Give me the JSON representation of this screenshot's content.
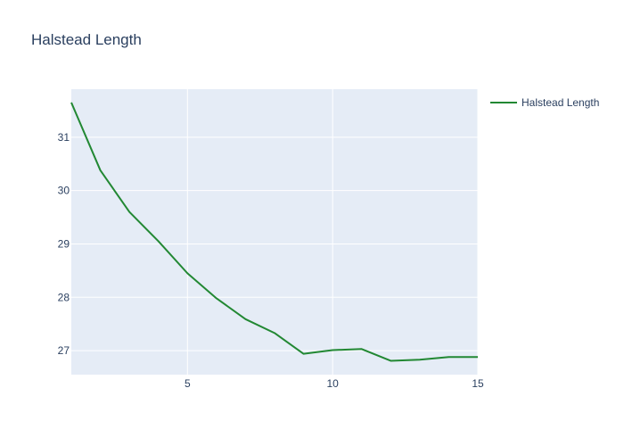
{
  "chart_data": {
    "type": "line",
    "title": "Halstead Length",
    "xlabel": "",
    "ylabel": "",
    "xlim": [
      1,
      15
    ],
    "ylim": [
      26.55,
      31.9
    ],
    "x_ticks": [
      5,
      10,
      15
    ],
    "y_ticks": [
      27,
      28,
      29,
      30,
      31
    ],
    "grid": true,
    "legend_position": "top-right",
    "plot_background": "#e5ecf6",
    "series": [
      {
        "name": "Halstead Length",
        "color": "#228833",
        "x": [
          1,
          2,
          3,
          4,
          5,
          6,
          7,
          8,
          9,
          10,
          11,
          12,
          13,
          14,
          15
        ],
        "values": [
          31.65,
          30.38,
          29.6,
          29.05,
          28.45,
          27.98,
          27.59,
          27.33,
          26.94,
          27.01,
          27.03,
          26.81,
          26.83,
          26.88,
          26.88
        ]
      }
    ]
  }
}
